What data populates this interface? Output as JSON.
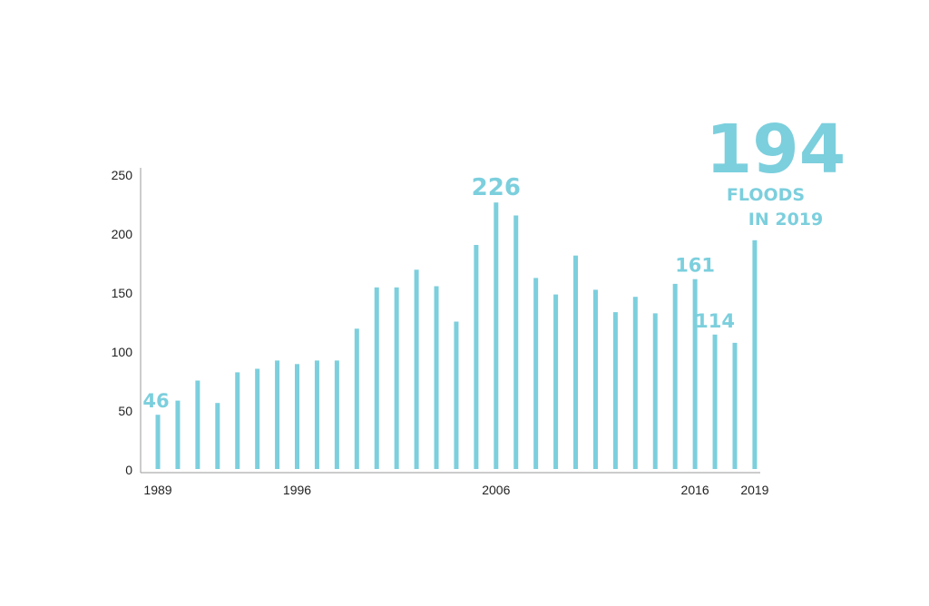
{
  "chart_data": {
    "type": "bar",
    "title": "",
    "xlabel": "",
    "ylabel": "",
    "ylim": [
      0,
      250
    ],
    "yticks": [
      "0",
      "50",
      "100",
      "150",
      "200",
      "250"
    ],
    "xtick_labels": [
      "1989",
      "1996",
      "2006",
      "2016",
      "2019"
    ],
    "grid": false,
    "bar_color": "#7ccfdd",
    "categories": [
      1989,
      1990,
      1991,
      1992,
      1993,
      1994,
      1995,
      1996,
      1997,
      1998,
      1999,
      2000,
      2001,
      2002,
      2003,
      2004,
      2005,
      2006,
      2007,
      2008,
      2009,
      2010,
      2011,
      2012,
      2013,
      2014,
      2015,
      2016,
      2017,
      2018,
      2019
    ],
    "values": [
      46,
      58,
      75,
      56,
      82,
      85,
      92,
      89,
      92,
      92,
      119,
      154,
      154,
      169,
      155,
      125,
      190,
      226,
      215,
      162,
      148,
      181,
      152,
      133,
      146,
      132,
      157,
      161,
      114,
      107,
      194
    ],
    "annotations": [
      {
        "year": 1989,
        "text": "46"
      },
      {
        "year": 2006,
        "text": "226"
      },
      {
        "year": 2016,
        "text": "161"
      },
      {
        "year": 2017,
        "text": "114"
      }
    ],
    "highlight": {
      "value": "194",
      "line1": "FLOODS",
      "line2": "IN 2019"
    }
  }
}
